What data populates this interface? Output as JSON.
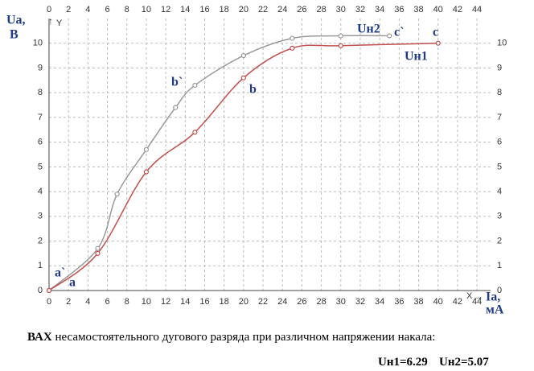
{
  "chart_data": {
    "type": "line",
    "y_label_lines": [
      "Ua,",
      "B"
    ],
    "y_axis_name": "Y",
    "x_axis_name": "X",
    "x_label_lines": [
      "Ia,",
      "мA"
    ],
    "xlim": [
      0,
      45.4
    ],
    "ylim": [
      0,
      11
    ],
    "xticks": [
      0,
      2,
      4,
      6,
      8,
      10,
      12,
      14,
      16,
      18,
      20,
      22,
      24,
      26,
      28,
      30,
      32,
      34,
      36,
      38,
      40,
      42,
      44
    ],
    "yticks": [
      0,
      1,
      2,
      3,
      4,
      5,
      6,
      7,
      8,
      9,
      10
    ],
    "grid": true,
    "series": [
      {
        "name": "Uн2",
        "color": "#9a9a9a",
        "x": [
          0,
          5,
          7,
          10,
          13,
          15,
          20,
          25,
          30,
          35
        ],
        "values": [
          0,
          1.7,
          3.9,
          5.7,
          7.4,
          8.3,
          9.5,
          10.2,
          10.3,
          10.3
        ]
      },
      {
        "name": "Uн1",
        "color": "#c0504d",
        "x": [
          0,
          5,
          10,
          15,
          20,
          25,
          30,
          40
        ],
        "values": [
          0,
          1.5,
          4.8,
          6.4,
          8.6,
          9.8,
          9.9,
          10.0
        ]
      }
    ],
    "annotations": [
      "a`",
      "a",
      "b`",
      "b",
      "c`",
      "c"
    ],
    "caption_bold": "ВАХ",
    "caption": "несамостоятельного  дугового разряда при различном напряжении накала:",
    "params": [
      "Uн1=6.29",
      "Uн2=5.07"
    ]
  }
}
